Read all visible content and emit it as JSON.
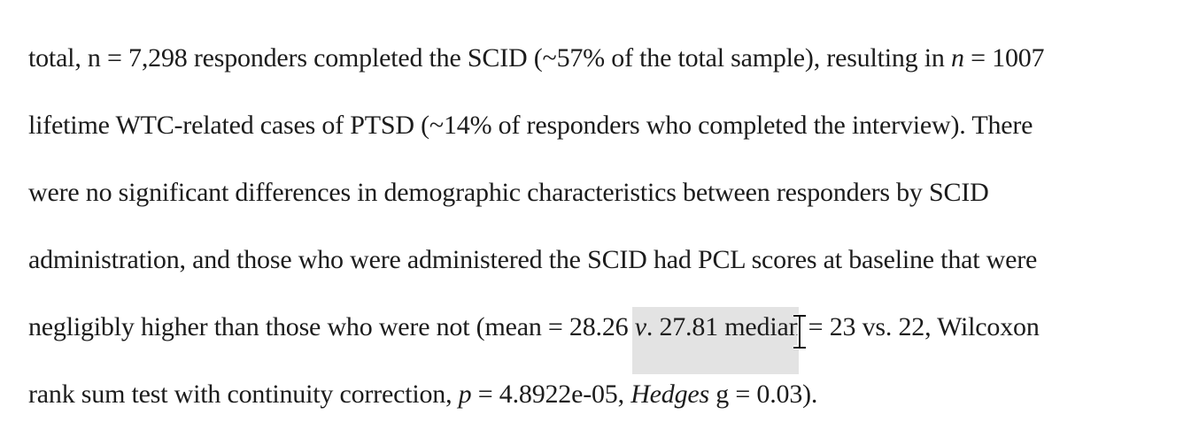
{
  "document": {
    "lines": [
      {
        "a": "total, n = 7,298 responders completed the SCID (~57% of the total sample), resulting in ",
        "b": "n",
        "c": " = 1007"
      },
      {
        "text": "lifetime WTC-related cases of PTSD (~14% of responders who completed the interview). There"
      },
      {
        "text": "were no significant differences in demographic characteristics between responders by SCID"
      },
      {
        "text": "administration, and those who were administered the SCID had PCL scores at baseline that were"
      },
      {
        "a": "negligibly higher than those who were not (mean = 28.26 ",
        "b": "v",
        "c": ". 27.81",
        "d": " median = 23 vs. 22, Wilcoxon"
      },
      {
        "a": "rank sum test with continuity correction, ",
        "b": "p",
        "c": " = 4.8922e-05, ",
        "d": "Hedges",
        "e": " g = 0.03)."
      }
    ]
  },
  "cursor": {
    "icon": "text-i-beam-icon"
  }
}
